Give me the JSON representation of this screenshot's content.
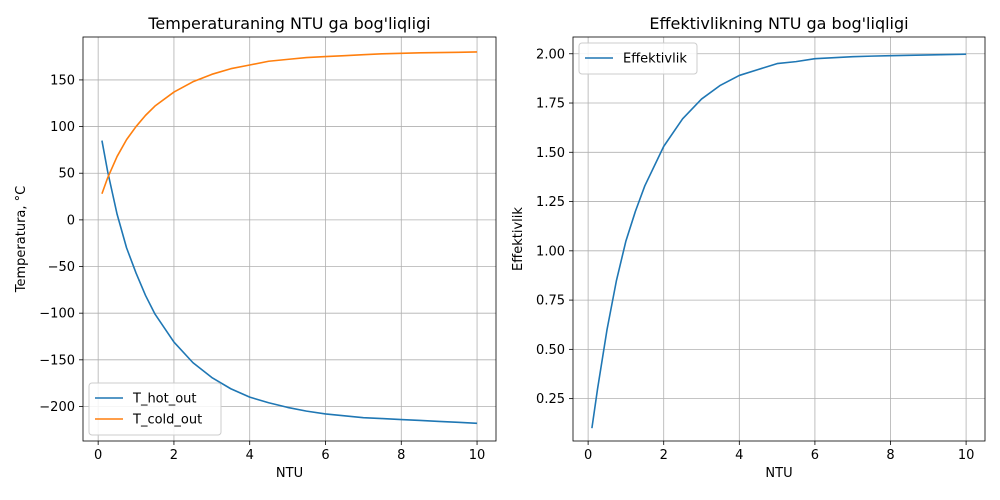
{
  "chart_data": [
    {
      "type": "line",
      "title": "Temperaturaning NTU ga bog'liqligi",
      "xlabel": "NTU",
      "ylabel": "Temperatura, °C",
      "xlim": [
        -0.4,
        10.5
      ],
      "ylim": [
        -237,
        196
      ],
      "xticks": [
        0,
        2,
        4,
        6,
        8,
        10
      ],
      "yticks": [
        -200,
        -150,
        -100,
        -50,
        0,
        50,
        100,
        150
      ],
      "grid": true,
      "legend_position": "lower-left",
      "x": [
        0.1,
        0.25,
        0.5,
        0.75,
        1.0,
        1.25,
        1.5,
        2.0,
        2.5,
        3.0,
        3.5,
        4.0,
        4.5,
        5.0,
        5.5,
        6.0,
        6.5,
        7.0,
        7.5,
        8.0,
        8.5,
        9.0,
        9.5,
        10.0
      ],
      "series": [
        {
          "name": "T_hot_out",
          "color": "#1f77b4",
          "values": [
            85,
            52,
            6,
            -30,
            -57,
            -81,
            -101,
            -131,
            -153,
            -169,
            -181,
            -190,
            -196,
            -201,
            -205,
            -208,
            -210,
            -212,
            -213,
            -214,
            -215,
            -216,
            -217,
            -218
          ]
        },
        {
          "name": "T_cold_out",
          "color": "#ff7f0e",
          "values": [
            28,
            45,
            68,
            86,
            100,
            112,
            122,
            137,
            148,
            156,
            162,
            166,
            170,
            172,
            174,
            175,
            176,
            177,
            178,
            178.5,
            179,
            179.3,
            179.6,
            180
          ]
        }
      ]
    },
    {
      "type": "line",
      "title": "Effektivlikning NTU ga bog'liqligi",
      "xlabel": "NTU",
      "ylabel": "Effektivlik",
      "xlim": [
        -0.4,
        10.5
      ],
      "ylim": [
        0.035,
        2.085
      ],
      "xticks": [
        0,
        2,
        4,
        6,
        8,
        10
      ],
      "yticks": [
        0.25,
        0.5,
        0.75,
        1.0,
        1.25,
        1.5,
        1.75,
        2.0
      ],
      "ytick_labels": [
        "0.25",
        "0.50",
        "0.75",
        "1.00",
        "1.25",
        "1.50",
        "1.75",
        "2.00"
      ],
      "grid": true,
      "legend_position": "upper-left",
      "x": [
        0.1,
        0.25,
        0.5,
        0.75,
        1.0,
        1.25,
        1.5,
        2.0,
        2.5,
        3.0,
        3.5,
        4.0,
        4.5,
        5.0,
        5.5,
        6.0,
        6.5,
        7.0,
        7.5,
        8.0,
        8.5,
        9.0,
        9.5,
        10.0
      ],
      "series": [
        {
          "name": "Effektivlik",
          "color": "#1f77b4",
          "values": [
            0.1,
            0.3,
            0.6,
            0.85,
            1.05,
            1.2,
            1.33,
            1.53,
            1.67,
            1.77,
            1.84,
            1.89,
            1.92,
            1.95,
            1.96,
            1.975,
            1.98,
            1.985,
            1.988,
            1.99,
            1.992,
            1.994,
            1.996,
            1.998
          ]
        }
      ]
    }
  ]
}
